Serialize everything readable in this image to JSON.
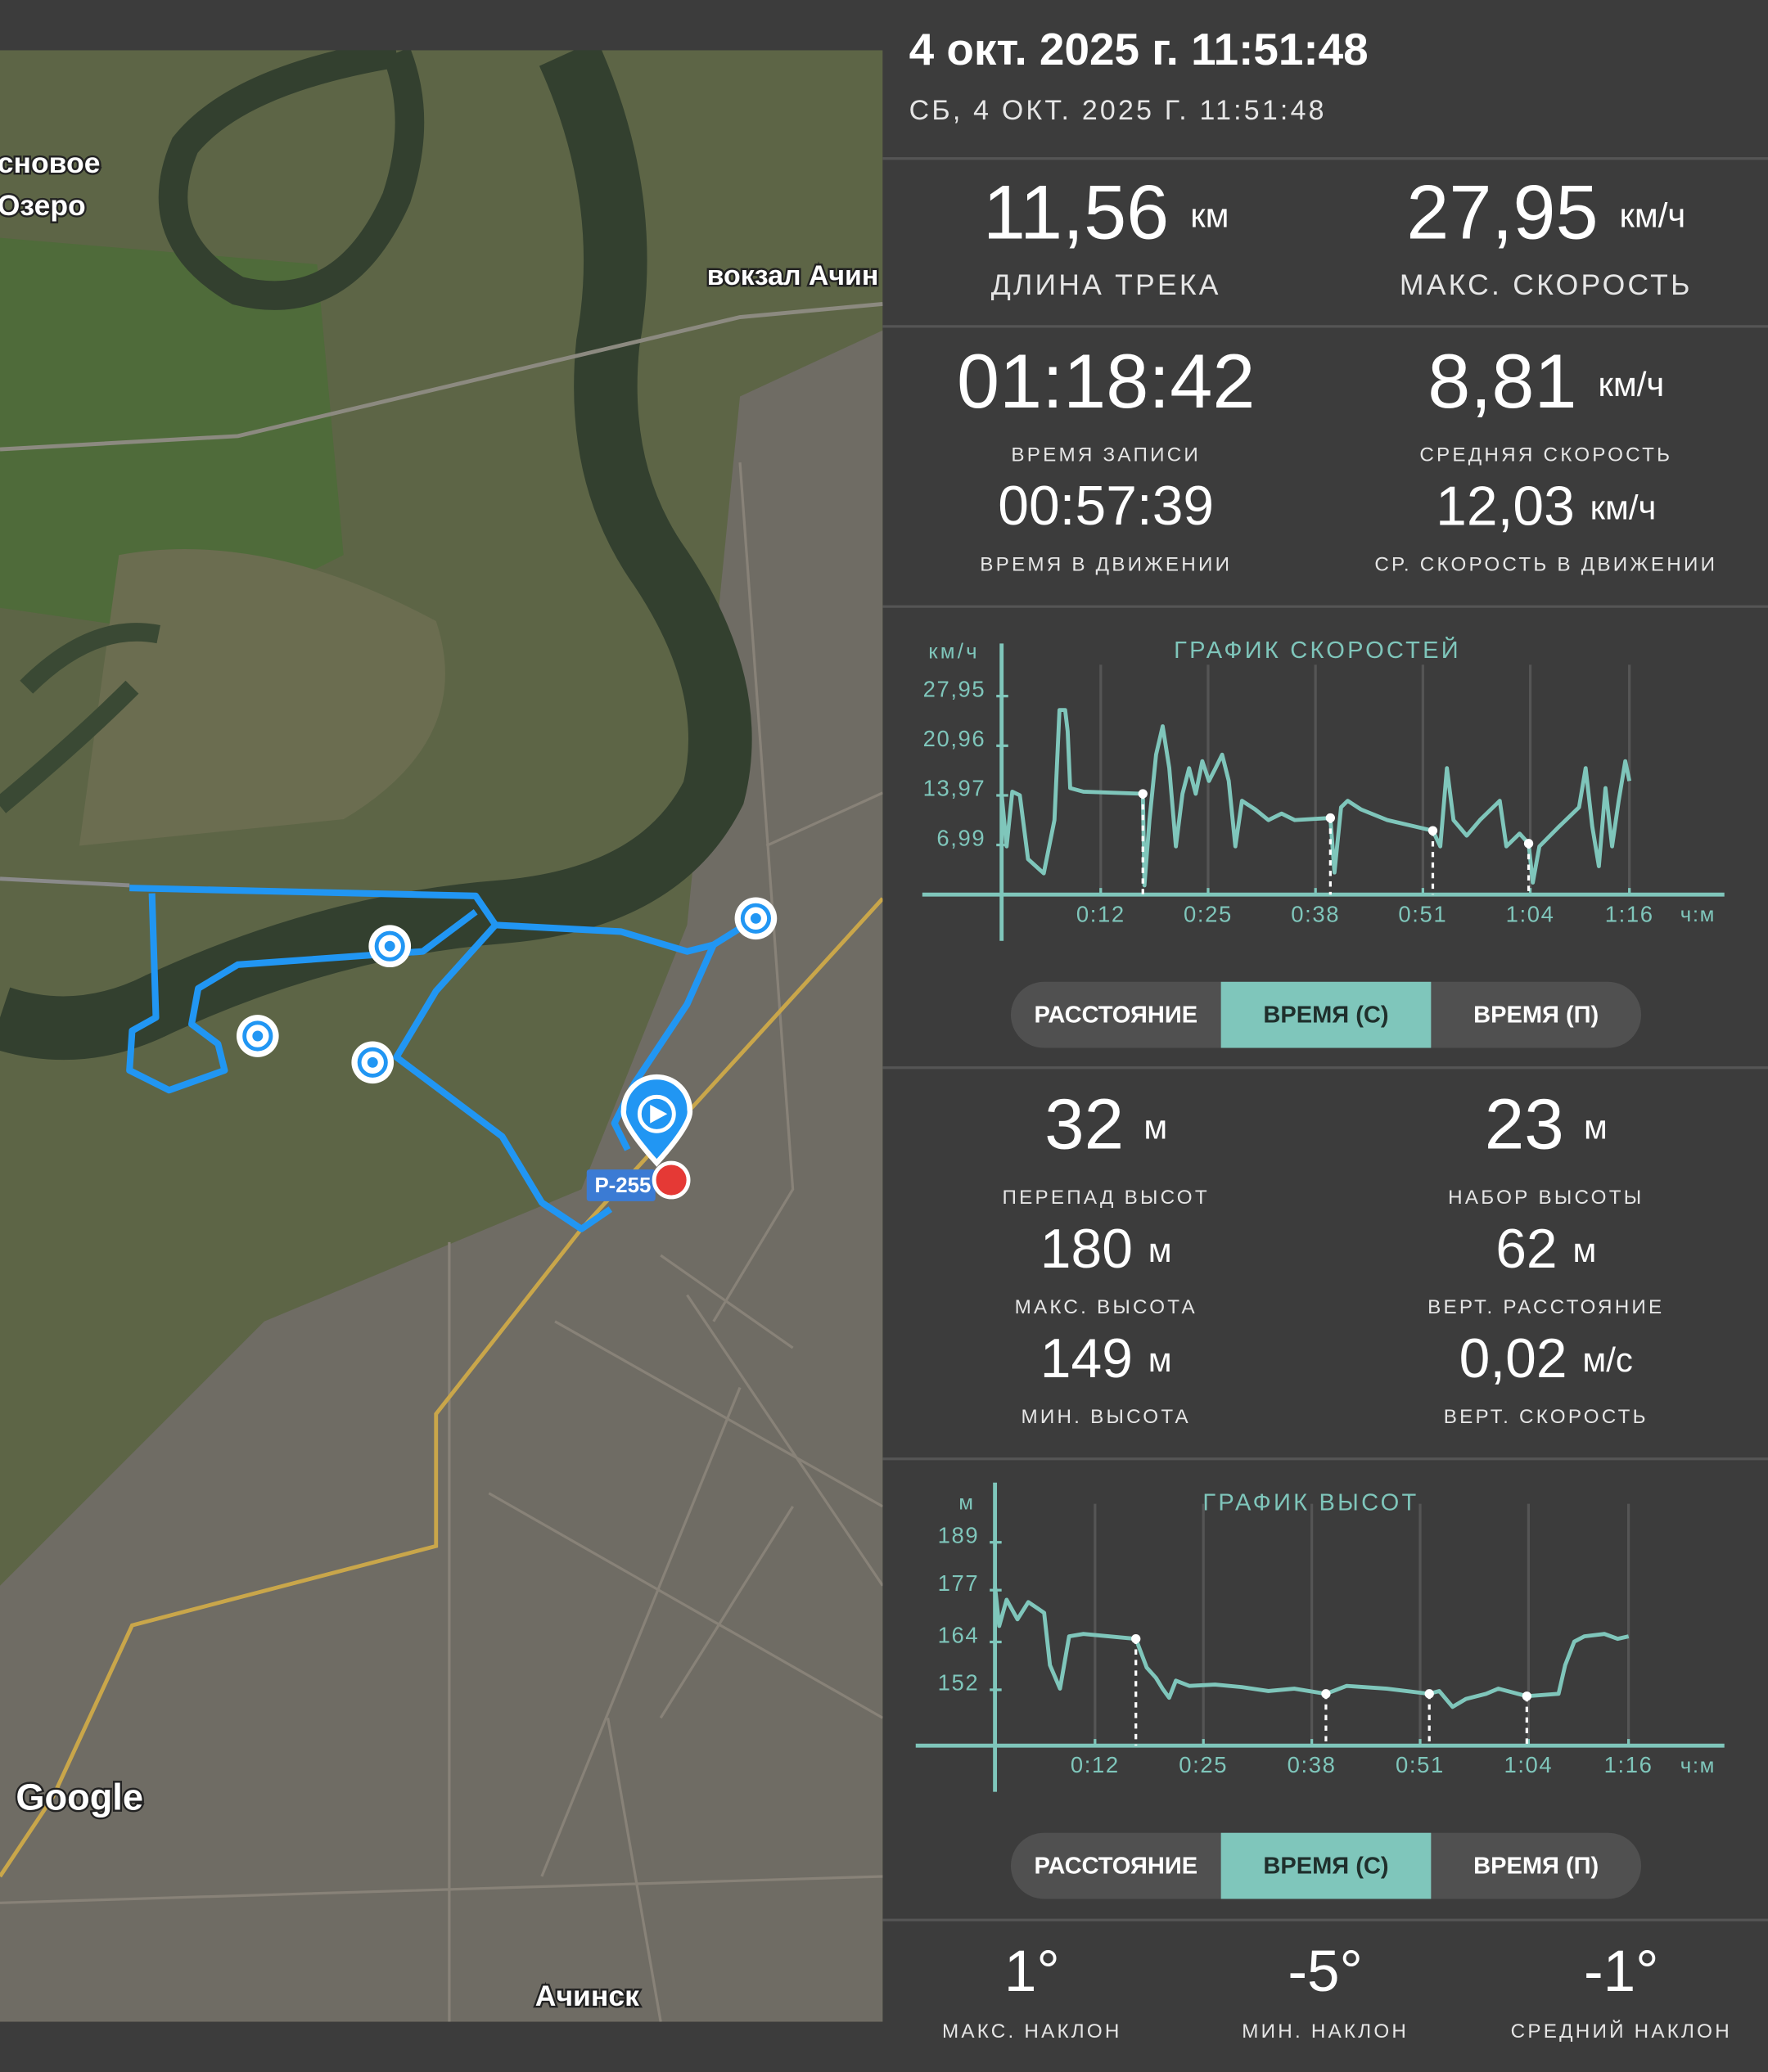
{
  "header": {
    "title": "4 окт. 2025 г. 11:51:48",
    "subtitle": "СБ, 4 ОКТ. 2025 Г. 11:51:48"
  },
  "summary": [
    {
      "value": "11,56",
      "unit": "км",
      "label": "ДЛИНА ТРЕКА"
    },
    {
      "value": "27,95",
      "unit": "км/ч",
      "label": "МАКС. СКОРОСТЬ"
    }
  ],
  "timing": [
    {
      "value": "01:18:42",
      "label": "ВРЕМЯ ЗАПИСИ"
    },
    {
      "value": "8,81",
      "unit": "км/ч",
      "label": "СРЕДНЯЯ СКОРОСТЬ"
    },
    {
      "value": "00:57:39",
      "label": "ВРЕМЯ В ДВИЖЕНИИ"
    },
    {
      "value": "12,03",
      "unit": "км/ч",
      "label": "СР. СКОРОСТЬ В ДВИЖЕНИИ"
    }
  ],
  "elevation_stats": [
    {
      "value": "32",
      "unit": "м",
      "label": "ПЕРЕПАД ВЫСОТ"
    },
    {
      "value": "23",
      "unit": "м",
      "label": "НАБОР ВЫСОТЫ"
    },
    {
      "value": "180",
      "unit": "м",
      "label": "МАКС. ВЫСОТА"
    },
    {
      "value": "62",
      "unit": "м",
      "label": "ВЕРТ. РАССТОЯНИЕ"
    },
    {
      "value": "149",
      "unit": "м",
      "label": "МИН. ВЫСОТА"
    },
    {
      "value": "0,02",
      "unit": "м/с",
      "label": "ВЕРТ. СКОРОСТЬ"
    }
  ],
  "slopes": [
    {
      "value": "1°",
      "label": "МАКС. НАКЛОН"
    },
    {
      "value": "-5°",
      "label": "МИН. НАКЛОН"
    },
    {
      "value": "-1°",
      "label": "СРЕДНИЙ НАКЛОН"
    }
  ],
  "speed_toggle": {
    "options": [
      "РАССТОЯНИЕ",
      "ВРЕМЯ (С)",
      "ВРЕМЯ (П)"
    ],
    "selected": 1
  },
  "elevation_toggle": {
    "options": [
      "РАССТОЯНИЕ",
      "ВРЕМЯ (С)",
      "ВРЕМЯ (П)"
    ],
    "selected": 1
  },
  "map": {
    "labels": [
      "сновое",
      "Озеро",
      "вокзал Ачин",
      "Ачинск"
    ],
    "road_sign": "Р-255",
    "logo": "Google"
  },
  "chart_data": [
    {
      "type": "line",
      "title": "ГРАФИК СКОРОСТЕЙ",
      "y_label": "км/ч",
      "x_label": "ч:м",
      "color": "#7fc6bb",
      "grid": true,
      "xlim": [
        0,
        87.5
      ],
      "ylim": [
        0,
        32
      ],
      "xticks": [
        {
          "value": 12,
          "label": "0:12"
        },
        {
          "value": 25,
          "label": "0:25"
        },
        {
          "value": 38,
          "label": "0:38"
        },
        {
          "value": 51,
          "label": "0:51"
        },
        {
          "value": 64,
          "label": "1:04"
        },
        {
          "value": 76,
          "label": "1:16"
        }
      ],
      "yticks": [
        {
          "value": 6.99,
          "label": "6,99"
        },
        {
          "value": 13.97,
          "label": "13,97"
        },
        {
          "value": 20.96,
          "label": "20,96"
        },
        {
          "value": 27.95,
          "label": "27,95"
        }
      ],
      "x": [
        0,
        0.6,
        1.3,
        2.2,
        3.2,
        5.1,
        6.4,
        7,
        7.7,
        8,
        8.3,
        9.9,
        17.1,
        17.3,
        17.9,
        18.7,
        19.5,
        20.3,
        21.1,
        21.9,
        22.7,
        23.5,
        24.3,
        25.1,
        25.9,
        26.7,
        27.5,
        28.3,
        29.1,
        30.7,
        32.3,
        33.9,
        35.5,
        39.8,
        40.3,
        41.1,
        41.9,
        43.5,
        46.7,
        52.2,
        53.1,
        53.9,
        54.7,
        56.3,
        57.9,
        60.3,
        61.1,
        62.7,
        63.8,
        64.3,
        65.1,
        67.5,
        69.9,
        70.7,
        71.5,
        72.3,
        73.1,
        73.9,
        74.7,
        75.5,
        76
      ],
      "series": [
        {
          "values": [
            14.2,
            6.8,
            14.5,
            14,
            5,
            3,
            10.5,
            26,
            26,
            23,
            15,
            14.5,
            14.2,
            1.3,
            10.5,
            19.7,
            23.7,
            17.8,
            6.8,
            14.2,
            17.8,
            14.2,
            18.8,
            16,
            17.8,
            19.7,
            16,
            6.8,
            13.2,
            12,
            10.5,
            11.4,
            10.5,
            10.8,
            3.1,
            12.3,
            13.2,
            12,
            10.5,
            9,
            6.8,
            17.8,
            10.5,
            8.3,
            10.5,
            13.2,
            6.8,
            8.6,
            7.2,
            1.7,
            6.8,
            9.6,
            12.3,
            17.8,
            9.6,
            4,
            15,
            6.8,
            13.2,
            18.8,
            16
          ]
        }
      ],
      "markers": {
        "x": [
          17.1,
          39.8,
          52.2,
          63.8
        ],
        "values": [
          14.2,
          10.8,
          9,
          7.2
        ]
      }
    },
    {
      "type": "line",
      "title": "ГРАФИК ВЫСОТ",
      "y_label": "м",
      "x_label": "ч:м",
      "color": "#7fc6bb",
      "grid": true,
      "xlim": [
        0,
        87.5
      ],
      "ylim": [
        138,
        198
      ],
      "xticks": [
        {
          "value": 12,
          "label": "0:12"
        },
        {
          "value": 25,
          "label": "0:25"
        },
        {
          "value": 38,
          "label": "0:38"
        },
        {
          "value": 51,
          "label": "0:51"
        },
        {
          "value": 64,
          "label": "1:04"
        },
        {
          "value": 76,
          "label": "1:16"
        }
      ],
      "yticks": [
        152,
        164,
        177,
        189
      ],
      "x": [
        0,
        0.5,
        1.4,
        2.7,
        4,
        5.9,
        6.6,
        7.8,
        8.9,
        10.6,
        16.9,
        18.2,
        19.3,
        20.1,
        20.9,
        21.7,
        23.3,
        26.4,
        29.6,
        32.8,
        35.9,
        39.7,
        42.2,
        47,
        52.1,
        53.3,
        54.9,
        56.5,
        58.9,
        60.4,
        63.8,
        67.6,
        68.4,
        69.5,
        70.7,
        73.1,
        74.7,
        76
      ],
      "series": [
        {
          "values": [
            177.9,
            168,
            174.6,
            169.7,
            174,
            171.3,
            158.2,
            152.3,
            165.4,
            166,
            164.8,
            157.6,
            155,
            152.3,
            150,
            154.3,
            153,
            153.3,
            152.7,
            151.7,
            152.3,
            151,
            153,
            152.3,
            151,
            151.7,
            147.7,
            149.7,
            151,
            152.3,
            150.4,
            151,
            158.2,
            164.1,
            165.4,
            166,
            164.8,
            165.4
          ]
        }
      ],
      "markers": {
        "x": [
          16.9,
          39.7,
          52.1,
          63.8
        ],
        "values": [
          164.8,
          151,
          151,
          150.4
        ]
      }
    }
  ]
}
